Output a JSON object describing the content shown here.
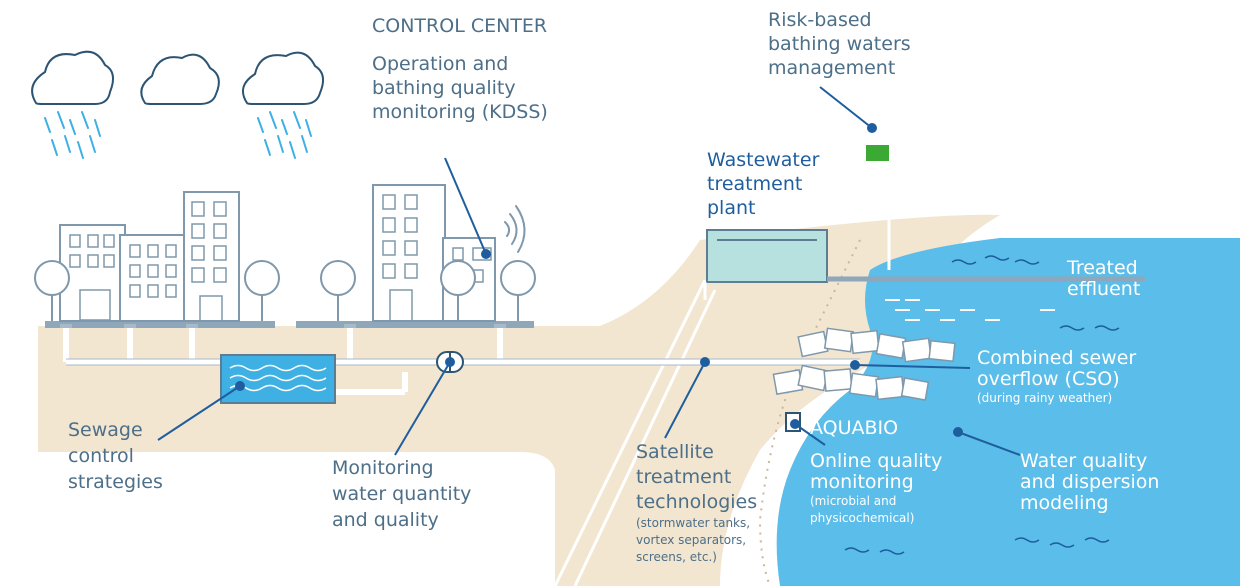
{
  "labels": {
    "control_center": "CONTROL CENTER",
    "operation": [
      "Operation and",
      "bathing quality",
      "monitoring (KDSS)"
    ],
    "risk": [
      "Risk-based",
      "bathing waters",
      "management"
    ],
    "wwtp": [
      "Wastewater",
      "treatment",
      "plant"
    ],
    "treated": [
      "Treated",
      "effluent"
    ],
    "cso": [
      "Combined sewer",
      "overflow (CSO)"
    ],
    "cso_note": "(during rainy weather)",
    "aquabio": "AQUABIO",
    "online": [
      "Online quality",
      "monitoring"
    ],
    "online_note": [
      "(microbial and",
      "physicochemical)"
    ],
    "water_quality": [
      "Water quality",
      "and dispersion",
      "modeling"
    ],
    "satellite": [
      "Satellite",
      "treatment",
      "technologies"
    ],
    "satellite_note": [
      "(stormwater tanks,",
      "vortex separators,",
      "screens, etc.)"
    ],
    "sewage": [
      "Sewage",
      "control",
      "strategies"
    ],
    "monitoring_qq": [
      "Monitoring",
      "water quantity",
      "and quality"
    ]
  },
  "icons": [
    "cloud-rain-icon",
    "cloud-icon",
    "building-icon",
    "tree-icon",
    "wifi-icon",
    "flag-icon",
    "sensor-icon",
    "storage-tank-icon",
    "flow-meter-icon",
    "pipe-icon"
  ],
  "colors": {
    "sand": "#f2e6d0",
    "sea": "#5bbde9",
    "text_gray": "#4d6f88",
    "text_blue": "#1f5e9e",
    "flag": "#3aaa35"
  }
}
